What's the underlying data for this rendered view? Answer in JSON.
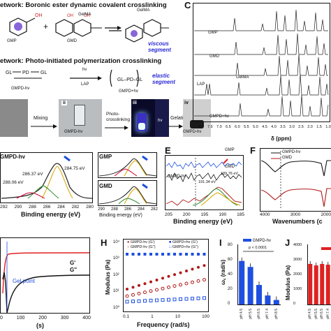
{
  "panelA": {
    "net1": "etwork: Boronic ester dynamic covalent crosslinking",
    "net2": "etwork: Photo-initiated polymerization crosslinking",
    "gmp": "GMP",
    "gmd": "GMD",
    "gelma1": "GelMA",
    "gelma2": "GelMA",
    "viscous": "viscous segment",
    "elastic": "elastic segment",
    "hv": "hv",
    "lap": "LAP",
    "gmpd": "GMPD-hv",
    "gmpdhv2": "GMPD+hv"
  },
  "panelB": {
    "steps": [
      "ii",
      "iii",
      "iv"
    ],
    "mixing": "Mixing",
    "photo": "Photo-\ncrosslinking",
    "gelation": "Gelation",
    "gmpd1": "GMPD-hv",
    "gmpd2": "GMPD-hv",
    "hv": "hv"
  },
  "panelC": {
    "label": "C",
    "xlabel": "δ (ppm)",
    "ticks": [
      "8.0",
      "7.5",
      "7.0",
      "6.5",
      "6.0",
      "5.5",
      "5.0",
      "4.5",
      "4.0",
      "3.5",
      "3.0",
      "2.5",
      "2.0",
      "1.5",
      "1.0"
    ],
    "traces": [
      "GMP",
      "GMD",
      "GelMA",
      "LAP",
      "GMPD+hv"
    ]
  },
  "panelD": {
    "title": "GMPD-hv",
    "peaks": [
      "284.75 eV",
      "286.37 eV",
      "288.06 eV"
    ],
    "xlabel": "Binding energy (eV)",
    "ticks": [
      "292",
      "290",
      "288",
      "286",
      "284",
      "282",
      "280"
    ],
    "gmp": "GMP",
    "gmd": "GMD",
    "ticks2": [
      "290",
      "288",
      "286",
      "284",
      "282"
    ],
    "xlabel2": "Binding energy (eV)"
  },
  "panelE": {
    "label": "E",
    "gmp": "GMP",
    "gmd": "GMD",
    "gmpd": "GMPD-hv",
    "peak1": "191.34 eV",
    "peak2": "189.76 eV",
    "xlabel": "Binding energy (eV)",
    "ticks": [
      "205",
      "200",
      "195",
      "190",
      "185"
    ]
  },
  "panelF": {
    "label": "F",
    "legend1": "GMPD-hv",
    "legend2": "GMD",
    "xlabel": "Wavenumbers (c",
    "ticks": [
      "4000",
      "3000",
      "2000"
    ]
  },
  "panelG": {
    "gel": "Gel point",
    "g1": "G'",
    "g2": "G''",
    "xlabel": "(s)",
    "ticks": [
      "0",
      "100",
      "200",
      "300",
      "400"
    ]
  },
  "panelH": {
    "label": "H",
    "legend": [
      "GMPD-hv (G')",
      "GMPD+hv (G')",
      "GMPD-hv (G'')",
      "GMPD+hv (G'')"
    ],
    "ylabel": "Modulus (Pa)",
    "xlabel": "Frequency (rad/s)",
    "yticks": [
      "10⁴",
      "10³",
      "10²",
      "10¹",
      "10⁰"
    ],
    "xticks": [
      "0.1",
      "1",
      "10",
      "100"
    ]
  },
  "panelI": {
    "label": "I",
    "legend": "GMPD-hv",
    "ylabel": "ω꜀ (rad/s)",
    "pval": "p < 0.0001",
    "yticks": [
      "80",
      "60",
      "40",
      "20",
      "0"
    ],
    "cats": [
      "pH 4.5",
      "pH 5.5",
      "pH 6.5",
      "pH 7.4",
      "pH 8.5"
    ]
  },
  "panelJ": {
    "label": "J",
    "ylabel": "Modulus (Pa)",
    "yticks": [
      "4000",
      "3000",
      "2000",
      "1000",
      "0"
    ],
    "cats": [
      "pH 4.5",
      "pH 5.5",
      "pH 6.5",
      "pH 7.4"
    ]
  },
  "chart_data": [
    {
      "type": "bar",
      "title": "",
      "ylabel": "ω꜀ (rad/s)",
      "categories": [
        "pH 4.5",
        "pH 5.5",
        "pH 6.5",
        "pH 7.4",
        "pH 8.5"
      ],
      "values": [
        58,
        50,
        26,
        12,
        6
      ],
      "ylim": [
        0,
        80
      ]
    },
    {
      "type": "bar",
      "title": "",
      "ylabel": "Modulus (Pa)",
      "categories": [
        "pH 4.5",
        "pH 5.5",
        "pH 6.5",
        "pH 7.4"
      ],
      "values": [
        2700,
        2600,
        2700,
        2650
      ],
      "ylim": [
        0,
        4000
      ]
    }
  ]
}
